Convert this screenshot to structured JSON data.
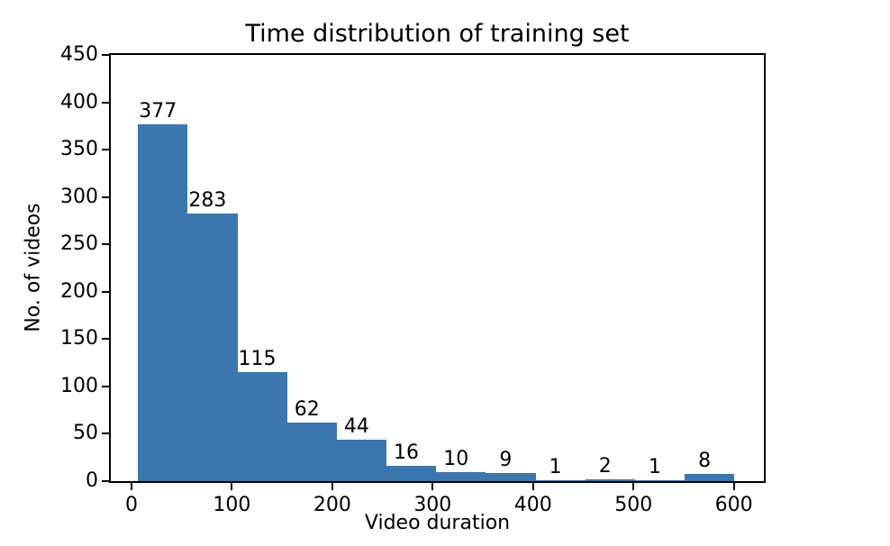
{
  "chart_data": {
    "type": "bar",
    "title": "Time distribution of training set",
    "xlabel": "Video duration",
    "ylabel": "No. of videos",
    "bin_start": 6.5,
    "bin_width": 49.5,
    "bin_count": 12,
    "counts": [
      377,
      283,
      115,
      62,
      44,
      16,
      10,
      9,
      1,
      2,
      1,
      8
    ],
    "bar_labels": [
      "377",
      "283",
      "115",
      "62",
      "44",
      "16",
      "10",
      "9",
      "1",
      "2",
      "1",
      "8"
    ],
    "x_ticks": [
      0,
      100,
      200,
      300,
      400,
      500,
      600
    ],
    "y_ticks": [
      0,
      50,
      100,
      150,
      200,
      250,
      300,
      350,
      400,
      450
    ],
    "xlim": [
      -20.6,
      629.9
    ],
    "ylim": [
      0,
      450
    ],
    "bar_color": "#3b76af",
    "axis_color": "#000000",
    "background_color": "#ffffff",
    "grid": false,
    "legend": null
  }
}
